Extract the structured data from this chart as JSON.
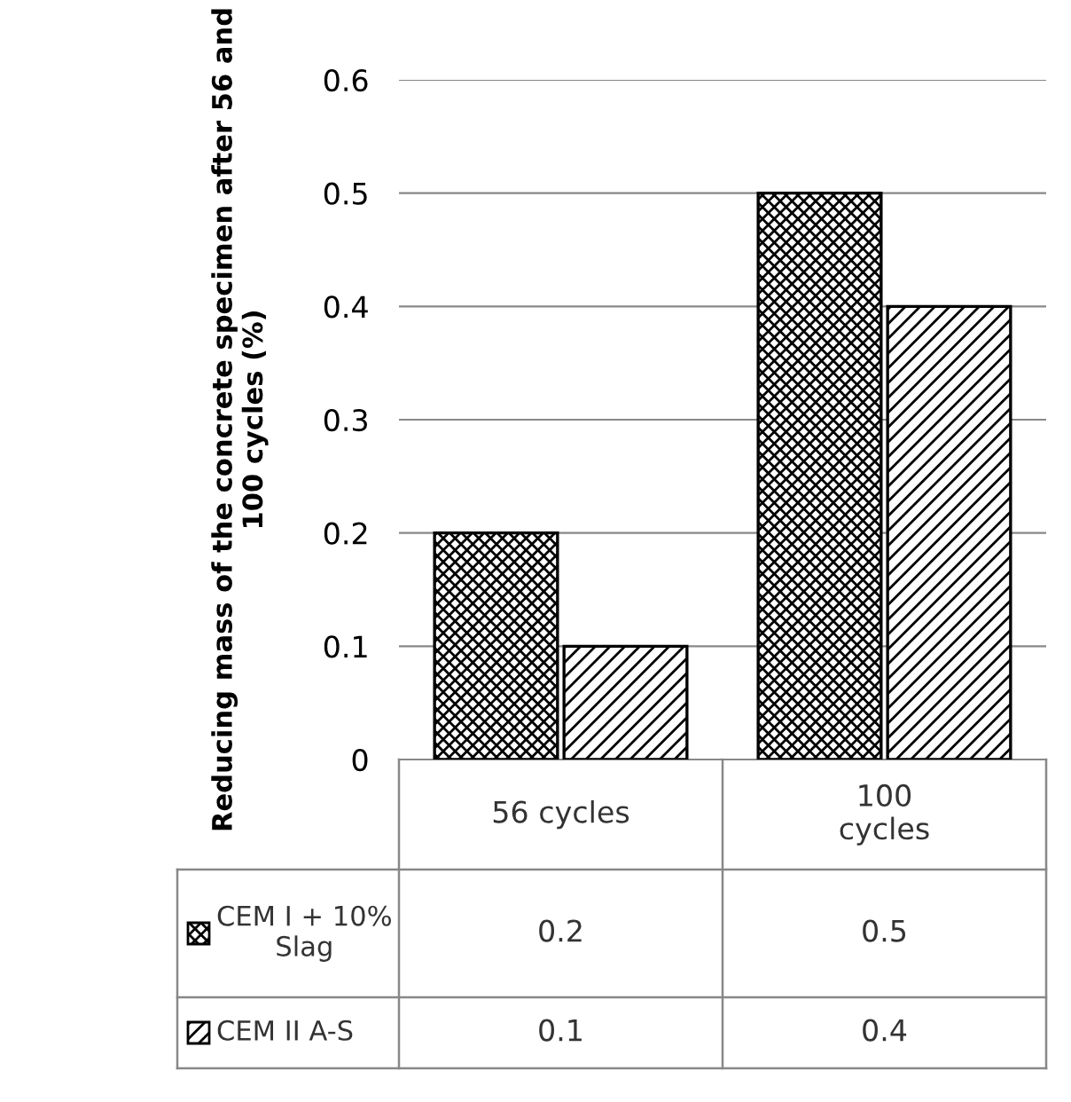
{
  "chart_data": {
    "type": "bar",
    "ylabel": "Reducing mass of the concrete specimen after 56 and 100 cycles (%)",
    "categories": [
      "56 cycles",
      "100 cycles"
    ],
    "series": [
      {
        "name": "CEM I + 10% Slag",
        "color": "#000000",
        "values": [
          0.2,
          0.5
        ]
      },
      {
        "name": "CEM II A-S",
        "color": "#000000",
        "values": [
          0.1,
          0.4
        ]
      }
    ],
    "ylim": [
      0,
      0.6
    ],
    "yticks": [
      0,
      0.1,
      0.2,
      0.3,
      0.4,
      0.5,
      0.6
    ],
    "grid": "y",
    "legend": "bottom",
    "data_labels": true
  }
}
